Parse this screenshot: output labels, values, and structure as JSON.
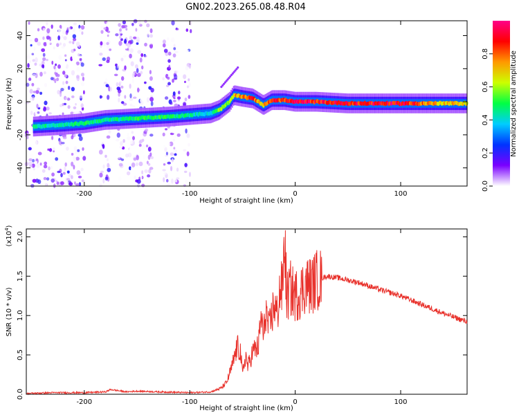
{
  "title": "GN02.2023.265.08.48.R04",
  "chart_data": [
    {
      "type": "heatmap",
      "xlabel": "Height of straight line (km)",
      "ylabel": "Frequency (Hz)",
      "xlim": [
        -255,
        163
      ],
      "ylim": [
        -51,
        49
      ],
      "xticks": [
        -200,
        -100,
        0,
        100
      ],
      "yticks": [
        -40,
        -20,
        0,
        20,
        40
      ],
      "colorbar": {
        "label": "Normalized spectral amplitude",
        "range": [
          0,
          1
        ],
        "ticks": [
          0.0,
          0.2,
          0.4,
          0.6,
          0.8
        ],
        "ticklabels": [
          "0.0",
          "0.2",
          "0.4",
          "0.6",
          "0.8"
        ],
        "colors": [
          "#ffffff",
          "#7a00ff",
          "#0033ff",
          "#00ccff",
          "#00ff44",
          "#ccff00",
          "#ff9900",
          "#ff0000",
          "#ff0088"
        ]
      },
      "ridge": {
        "x": [
          -248,
          -220,
          -200,
          -180,
          -150,
          -120,
          -100,
          -80,
          -72,
          -62,
          -58,
          -50,
          -40,
          -30,
          -22,
          -10,
          0,
          20,
          50,
          80,
          100,
          130,
          163
        ],
        "y": [
          -15,
          -14,
          -13,
          -11,
          -10,
          -9,
          -8,
          -7,
          -5,
          0,
          4,
          3,
          2,
          -2,
          1,
          1,
          0,
          0,
          -1,
          -1,
          -1,
          -1,
          -1
        ],
        "amplitude": [
          0.45,
          0.45,
          0.5,
          0.45,
          0.5,
          0.5,
          0.45,
          0.4,
          0.6,
          0.6,
          0.75,
          0.8,
          0.85,
          0.7,
          0.9,
          0.85,
          0.95,
          0.9,
          0.9,
          0.9,
          0.95,
          0.75,
          0.7
        ]
      },
      "noise_bands_x": [
        [
          -255,
          -200
        ],
        [
          -185,
          -175
        ],
        [
          -170,
          -135
        ],
        [
          -125,
          -110
        ],
        [
          -105,
          -99
        ]
      ]
    },
    {
      "type": "line",
      "xlabel": "Height of straight line (km)",
      "ylabel": "SNR (10 * v/v)",
      "scale_label": "(x10",
      "scale_exponent": "4",
      "xlim": [
        -255,
        163
      ],
      "ylim": [
        0,
        2.1
      ],
      "xticks": [
        -200,
        -100,
        0,
        100
      ],
      "yticks": [
        0.0,
        0.5,
        1.0,
        1.5,
        2.0
      ],
      "yticklabels": [
        "0.0",
        "0.5",
        "1.0",
        "1.5",
        "2.0"
      ],
      "color": "#e8302a",
      "series": [
        {
          "x": [
            -255,
            -230,
            -200,
            -180,
            -175,
            -160,
            -150,
            -130,
            -100,
            -80,
            -70,
            -65,
            -60,
            -55,
            -52,
            -50,
            -47,
            -45,
            -40,
            -35,
            -32,
            -30,
            -28,
            -25,
            -20,
            -17,
            -15,
            -12,
            -10,
            -8,
            -5,
            0,
            5,
            10,
            15,
            20,
            30,
            40,
            60,
            80,
            100,
            120,
            140,
            163
          ],
          "y": [
            0.01,
            0.02,
            0.02,
            0.03,
            0.06,
            0.03,
            0.04,
            0.03,
            0.02,
            0.03,
            0.08,
            0.15,
            0.35,
            0.6,
            0.55,
            0.25,
            0.5,
            0.35,
            0.55,
            0.6,
            1.0,
            0.7,
            1.1,
            0.8,
            1.15,
            1.0,
            1.3,
            1.35,
            2.0,
            1.2,
            1.35,
            1.25,
            1.3,
            1.4,
            1.38,
            1.45,
            1.5,
            1.48,
            1.42,
            1.33,
            1.25,
            1.14,
            1.03,
            0.92
          ]
        }
      ]
    }
  ]
}
